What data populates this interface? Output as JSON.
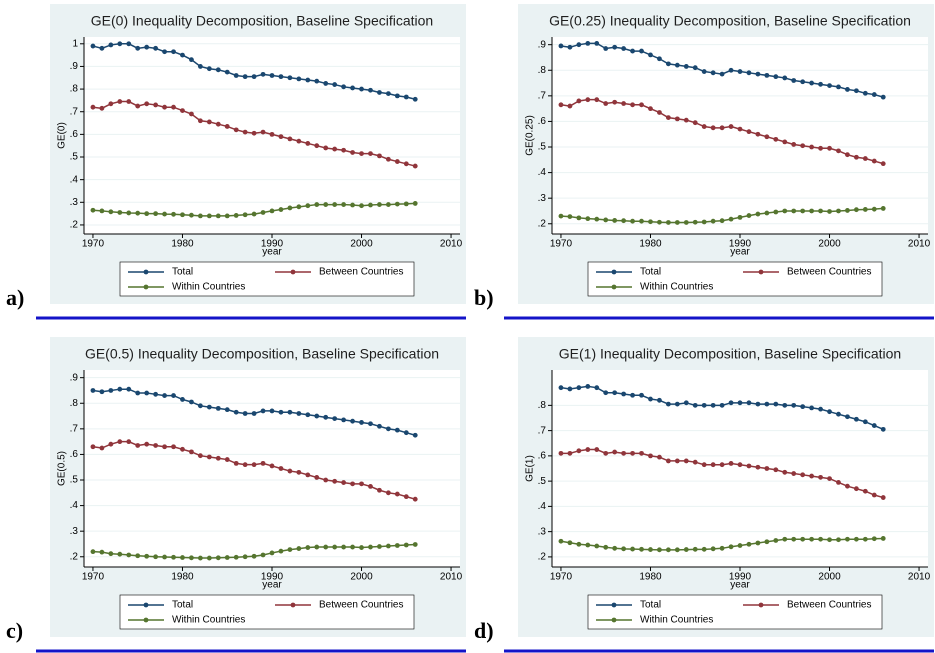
{
  "chart_data": [
    {
      "type": "line",
      "panel_label": "a)",
      "title": "GE(0) Inequality Decomposition, Baseline Specification",
      "x_label": "year",
      "y_label": "GE(0)",
      "x": [
        1970,
        1971,
        1972,
        1973,
        1974,
        1975,
        1976,
        1977,
        1978,
        1979,
        1980,
        1981,
        1982,
        1983,
        1984,
        1985,
        1986,
        1987,
        1988,
        1989,
        1990,
        1991,
        1992,
        1993,
        1994,
        1995,
        1996,
        1997,
        1998,
        1999,
        2000,
        2001,
        2002,
        2003,
        2004,
        2005,
        2006
      ],
      "xlim": [
        1969,
        2011
      ],
      "xticks": [
        1970,
        1980,
        1990,
        2000,
        2010
      ],
      "ylim": [
        0.16,
        1.03
      ],
      "yticks": [
        {
          "value": 0.2,
          "label": ".2"
        },
        {
          "value": 0.3,
          "label": ".3"
        },
        {
          "value": 0.4,
          "label": ".4"
        },
        {
          "value": 0.5,
          "label": ".5"
        },
        {
          "value": 0.6,
          "label": ".6"
        },
        {
          "value": 0.7,
          "label": ".7"
        },
        {
          "value": 0.8,
          "label": ".8"
        },
        {
          "value": 0.9,
          "label": ".9"
        },
        1
      ],
      "grid": true,
      "series": [
        {
          "name": "Total",
          "color": "#1a476f",
          "values": [
            0.99,
            0.98,
            0.995,
            1.0,
            1.0,
            0.98,
            0.985,
            0.98,
            0.965,
            0.965,
            0.95,
            0.93,
            0.9,
            0.89,
            0.885,
            0.875,
            0.86,
            0.855,
            0.855,
            0.865,
            0.86,
            0.855,
            0.85,
            0.845,
            0.84,
            0.835,
            0.825,
            0.82,
            0.81,
            0.805,
            0.8,
            0.795,
            0.785,
            0.78,
            0.77,
            0.765,
            0.755
          ]
        },
        {
          "name": "Between Countries",
          "color": "#90353b",
          "values": [
            0.72,
            0.715,
            0.735,
            0.745,
            0.745,
            0.725,
            0.735,
            0.73,
            0.72,
            0.72,
            0.705,
            0.69,
            0.66,
            0.655,
            0.645,
            0.635,
            0.62,
            0.61,
            0.605,
            0.61,
            0.6,
            0.59,
            0.58,
            0.57,
            0.56,
            0.55,
            0.54,
            0.535,
            0.53,
            0.52,
            0.515,
            0.515,
            0.505,
            0.49,
            0.48,
            0.47,
            0.46
          ]
        },
        {
          "name": "Within Countries",
          "color": "#55752f",
          "values": [
            0.265,
            0.262,
            0.258,
            0.255,
            0.253,
            0.252,
            0.25,
            0.25,
            0.248,
            0.247,
            0.245,
            0.243,
            0.24,
            0.24,
            0.24,
            0.24,
            0.242,
            0.245,
            0.248,
            0.255,
            0.262,
            0.268,
            0.275,
            0.28,
            0.285,
            0.29,
            0.29,
            0.29,
            0.29,
            0.288,
            0.285,
            0.288,
            0.29,
            0.29,
            0.292,
            0.293,
            0.295
          ]
        }
      ]
    },
    {
      "type": "line",
      "panel_label": "b)",
      "title": "GE(0.25) Inequality Decomposition, Baseline Specification",
      "x_label": "year",
      "y_label": "GE(0.25)",
      "x": [
        1970,
        1971,
        1972,
        1973,
        1974,
        1975,
        1976,
        1977,
        1978,
        1979,
        1980,
        1981,
        1982,
        1983,
        1984,
        1985,
        1986,
        1987,
        1988,
        1989,
        1990,
        1991,
        1992,
        1993,
        1994,
        1995,
        1996,
        1997,
        1998,
        1999,
        2000,
        2001,
        2002,
        2003,
        2004,
        2005,
        2006
      ],
      "xlim": [
        1969,
        2011
      ],
      "xticks": [
        1970,
        1980,
        1990,
        2000,
        2010
      ],
      "ylim": [
        0.16,
        0.93
      ],
      "yticks": [
        {
          "value": 0.2,
          "label": ".2"
        },
        {
          "value": 0.3,
          "label": ".3"
        },
        {
          "value": 0.4,
          "label": ".4"
        },
        {
          "value": 0.5,
          "label": ".5"
        },
        {
          "value": 0.6,
          "label": ".6"
        },
        {
          "value": 0.7,
          "label": ".7"
        },
        {
          "value": 0.8,
          "label": ".8"
        },
        {
          "value": 0.9,
          "label": ".9"
        }
      ],
      "grid": true,
      "series": [
        {
          "name": "Total",
          "color": "#1a476f",
          "values": [
            0.895,
            0.89,
            0.9,
            0.905,
            0.905,
            0.885,
            0.89,
            0.885,
            0.875,
            0.875,
            0.86,
            0.845,
            0.825,
            0.82,
            0.815,
            0.81,
            0.795,
            0.79,
            0.785,
            0.8,
            0.795,
            0.79,
            0.785,
            0.78,
            0.775,
            0.77,
            0.76,
            0.755,
            0.75,
            0.745,
            0.74,
            0.735,
            0.725,
            0.72,
            0.71,
            0.705,
            0.695
          ]
        },
        {
          "name": "Between Countries",
          "color": "#90353b",
          "values": [
            0.665,
            0.66,
            0.68,
            0.685,
            0.685,
            0.67,
            0.675,
            0.67,
            0.665,
            0.665,
            0.65,
            0.635,
            0.615,
            0.61,
            0.605,
            0.595,
            0.58,
            0.575,
            0.575,
            0.58,
            0.57,
            0.56,
            0.55,
            0.54,
            0.53,
            0.52,
            0.51,
            0.505,
            0.5,
            0.495,
            0.495,
            0.485,
            0.47,
            0.46,
            0.455,
            0.445,
            0.435
          ]
        },
        {
          "name": "Within Countries",
          "color": "#55752f",
          "values": [
            0.23,
            0.228,
            0.223,
            0.22,
            0.218,
            0.215,
            0.213,
            0.212,
            0.21,
            0.21,
            0.208,
            0.206,
            0.205,
            0.205,
            0.205,
            0.206,
            0.207,
            0.21,
            0.212,
            0.218,
            0.225,
            0.232,
            0.238,
            0.242,
            0.246,
            0.25,
            0.25,
            0.25,
            0.25,
            0.25,
            0.248,
            0.25,
            0.252,
            0.255,
            0.256,
            0.257,
            0.26
          ]
        }
      ]
    },
    {
      "type": "line",
      "panel_label": "c)",
      "title": "GE(0.5) Inequality Decomposition, Baseline Specification",
      "x_label": "year",
      "y_label": "GE(0.5)",
      "x": [
        1970,
        1971,
        1972,
        1973,
        1974,
        1975,
        1976,
        1977,
        1978,
        1979,
        1980,
        1981,
        1982,
        1983,
        1984,
        1985,
        1986,
        1987,
        1988,
        1989,
        1990,
        1991,
        1992,
        1993,
        1994,
        1995,
        1996,
        1997,
        1998,
        1999,
        2000,
        2001,
        2002,
        2003,
        2004,
        2005,
        2006
      ],
      "xlim": [
        1969,
        2011
      ],
      "xticks": [
        1970,
        1980,
        1990,
        2000,
        2010
      ],
      "ylim": [
        0.16,
        0.93
      ],
      "yticks": [
        {
          "value": 0.2,
          "label": ".2"
        },
        {
          "value": 0.3,
          "label": ".3"
        },
        {
          "value": 0.4,
          "label": ".4"
        },
        {
          "value": 0.5,
          "label": ".5"
        },
        {
          "value": 0.6,
          "label": ".6"
        },
        {
          "value": 0.7,
          "label": ".7"
        },
        {
          "value": 0.8,
          "label": ".8"
        },
        {
          "value": 0.9,
          "label": ".9"
        }
      ],
      "grid": true,
      "series": [
        {
          "name": "Total",
          "color": "#1a476f",
          "values": [
            0.85,
            0.845,
            0.85,
            0.855,
            0.855,
            0.84,
            0.84,
            0.835,
            0.83,
            0.83,
            0.815,
            0.805,
            0.79,
            0.785,
            0.78,
            0.775,
            0.765,
            0.76,
            0.76,
            0.77,
            0.77,
            0.765,
            0.765,
            0.76,
            0.755,
            0.75,
            0.745,
            0.74,
            0.735,
            0.73,
            0.725,
            0.72,
            0.71,
            0.7,
            0.695,
            0.685,
            0.675
          ]
        },
        {
          "name": "Between Countries",
          "color": "#90353b",
          "values": [
            0.63,
            0.625,
            0.64,
            0.65,
            0.65,
            0.635,
            0.64,
            0.635,
            0.63,
            0.63,
            0.62,
            0.61,
            0.595,
            0.59,
            0.585,
            0.58,
            0.565,
            0.56,
            0.56,
            0.565,
            0.555,
            0.545,
            0.535,
            0.53,
            0.52,
            0.51,
            0.5,
            0.495,
            0.49,
            0.485,
            0.485,
            0.475,
            0.46,
            0.45,
            0.445,
            0.435,
            0.425
          ]
        },
        {
          "name": "Within Countries",
          "color": "#55752f",
          "values": [
            0.22,
            0.218,
            0.212,
            0.21,
            0.207,
            0.204,
            0.202,
            0.2,
            0.199,
            0.198,
            0.197,
            0.196,
            0.195,
            0.195,
            0.196,
            0.197,
            0.198,
            0.2,
            0.202,
            0.207,
            0.215,
            0.222,
            0.228,
            0.232,
            0.236,
            0.238,
            0.238,
            0.238,
            0.238,
            0.238,
            0.236,
            0.238,
            0.24,
            0.242,
            0.244,
            0.246,
            0.248
          ]
        }
      ]
    },
    {
      "type": "line",
      "panel_label": "d)",
      "title": "GE(1) Inequality Decomposition, Baseline Specification",
      "x_label": "year",
      "y_label": "GE(1)",
      "x": [
        1970,
        1971,
        1972,
        1973,
        1974,
        1975,
        1976,
        1977,
        1978,
        1979,
        1980,
        1981,
        1982,
        1983,
        1984,
        1985,
        1986,
        1987,
        1988,
        1989,
        1990,
        1991,
        1992,
        1993,
        1994,
        1995,
        1996,
        1997,
        1998,
        1999,
        2000,
        2001,
        2002,
        2003,
        2004,
        2005,
        2006
      ],
      "xlim": [
        1969,
        2011
      ],
      "xticks": [
        1970,
        1980,
        1990,
        2000,
        2010
      ],
      "ylim": [
        0.16,
        0.94
      ],
      "yticks": [
        {
          "value": 0.2,
          "label": ".2"
        },
        {
          "value": 0.3,
          "label": ".3"
        },
        {
          "value": 0.4,
          "label": ".4"
        },
        {
          "value": 0.5,
          "label": ".5"
        },
        {
          "value": 0.6,
          "label": ".6"
        },
        {
          "value": 0.7,
          "label": ".7"
        },
        {
          "value": 0.8,
          "label": ".8"
        }
      ],
      "grid": true,
      "series": [
        {
          "name": "Total",
          "color": "#1a476f",
          "values": [
            0.87,
            0.865,
            0.87,
            0.875,
            0.87,
            0.85,
            0.85,
            0.845,
            0.84,
            0.84,
            0.825,
            0.82,
            0.805,
            0.805,
            0.81,
            0.8,
            0.8,
            0.8,
            0.8,
            0.81,
            0.81,
            0.81,
            0.805,
            0.805,
            0.805,
            0.8,
            0.8,
            0.795,
            0.79,
            0.785,
            0.775,
            0.765,
            0.755,
            0.745,
            0.735,
            0.72,
            0.705
          ]
        },
        {
          "name": "Between Countries",
          "color": "#90353b",
          "values": [
            0.61,
            0.61,
            0.62,
            0.625,
            0.625,
            0.61,
            0.615,
            0.61,
            0.61,
            0.61,
            0.6,
            0.595,
            0.58,
            0.58,
            0.58,
            0.575,
            0.565,
            0.565,
            0.565,
            0.57,
            0.565,
            0.56,
            0.555,
            0.55,
            0.545,
            0.535,
            0.53,
            0.525,
            0.52,
            0.515,
            0.51,
            0.495,
            0.48,
            0.47,
            0.46,
            0.445,
            0.435
          ]
        },
        {
          "name": "Within Countries",
          "color": "#55752f",
          "values": [
            0.262,
            0.256,
            0.25,
            0.247,
            0.243,
            0.238,
            0.234,
            0.232,
            0.231,
            0.23,
            0.229,
            0.228,
            0.228,
            0.228,
            0.229,
            0.23,
            0.23,
            0.232,
            0.234,
            0.24,
            0.245,
            0.25,
            0.255,
            0.26,
            0.265,
            0.27,
            0.27,
            0.27,
            0.27,
            0.27,
            0.268,
            0.268,
            0.27,
            0.27,
            0.27,
            0.272,
            0.273
          ]
        }
      ]
    }
  ]
}
